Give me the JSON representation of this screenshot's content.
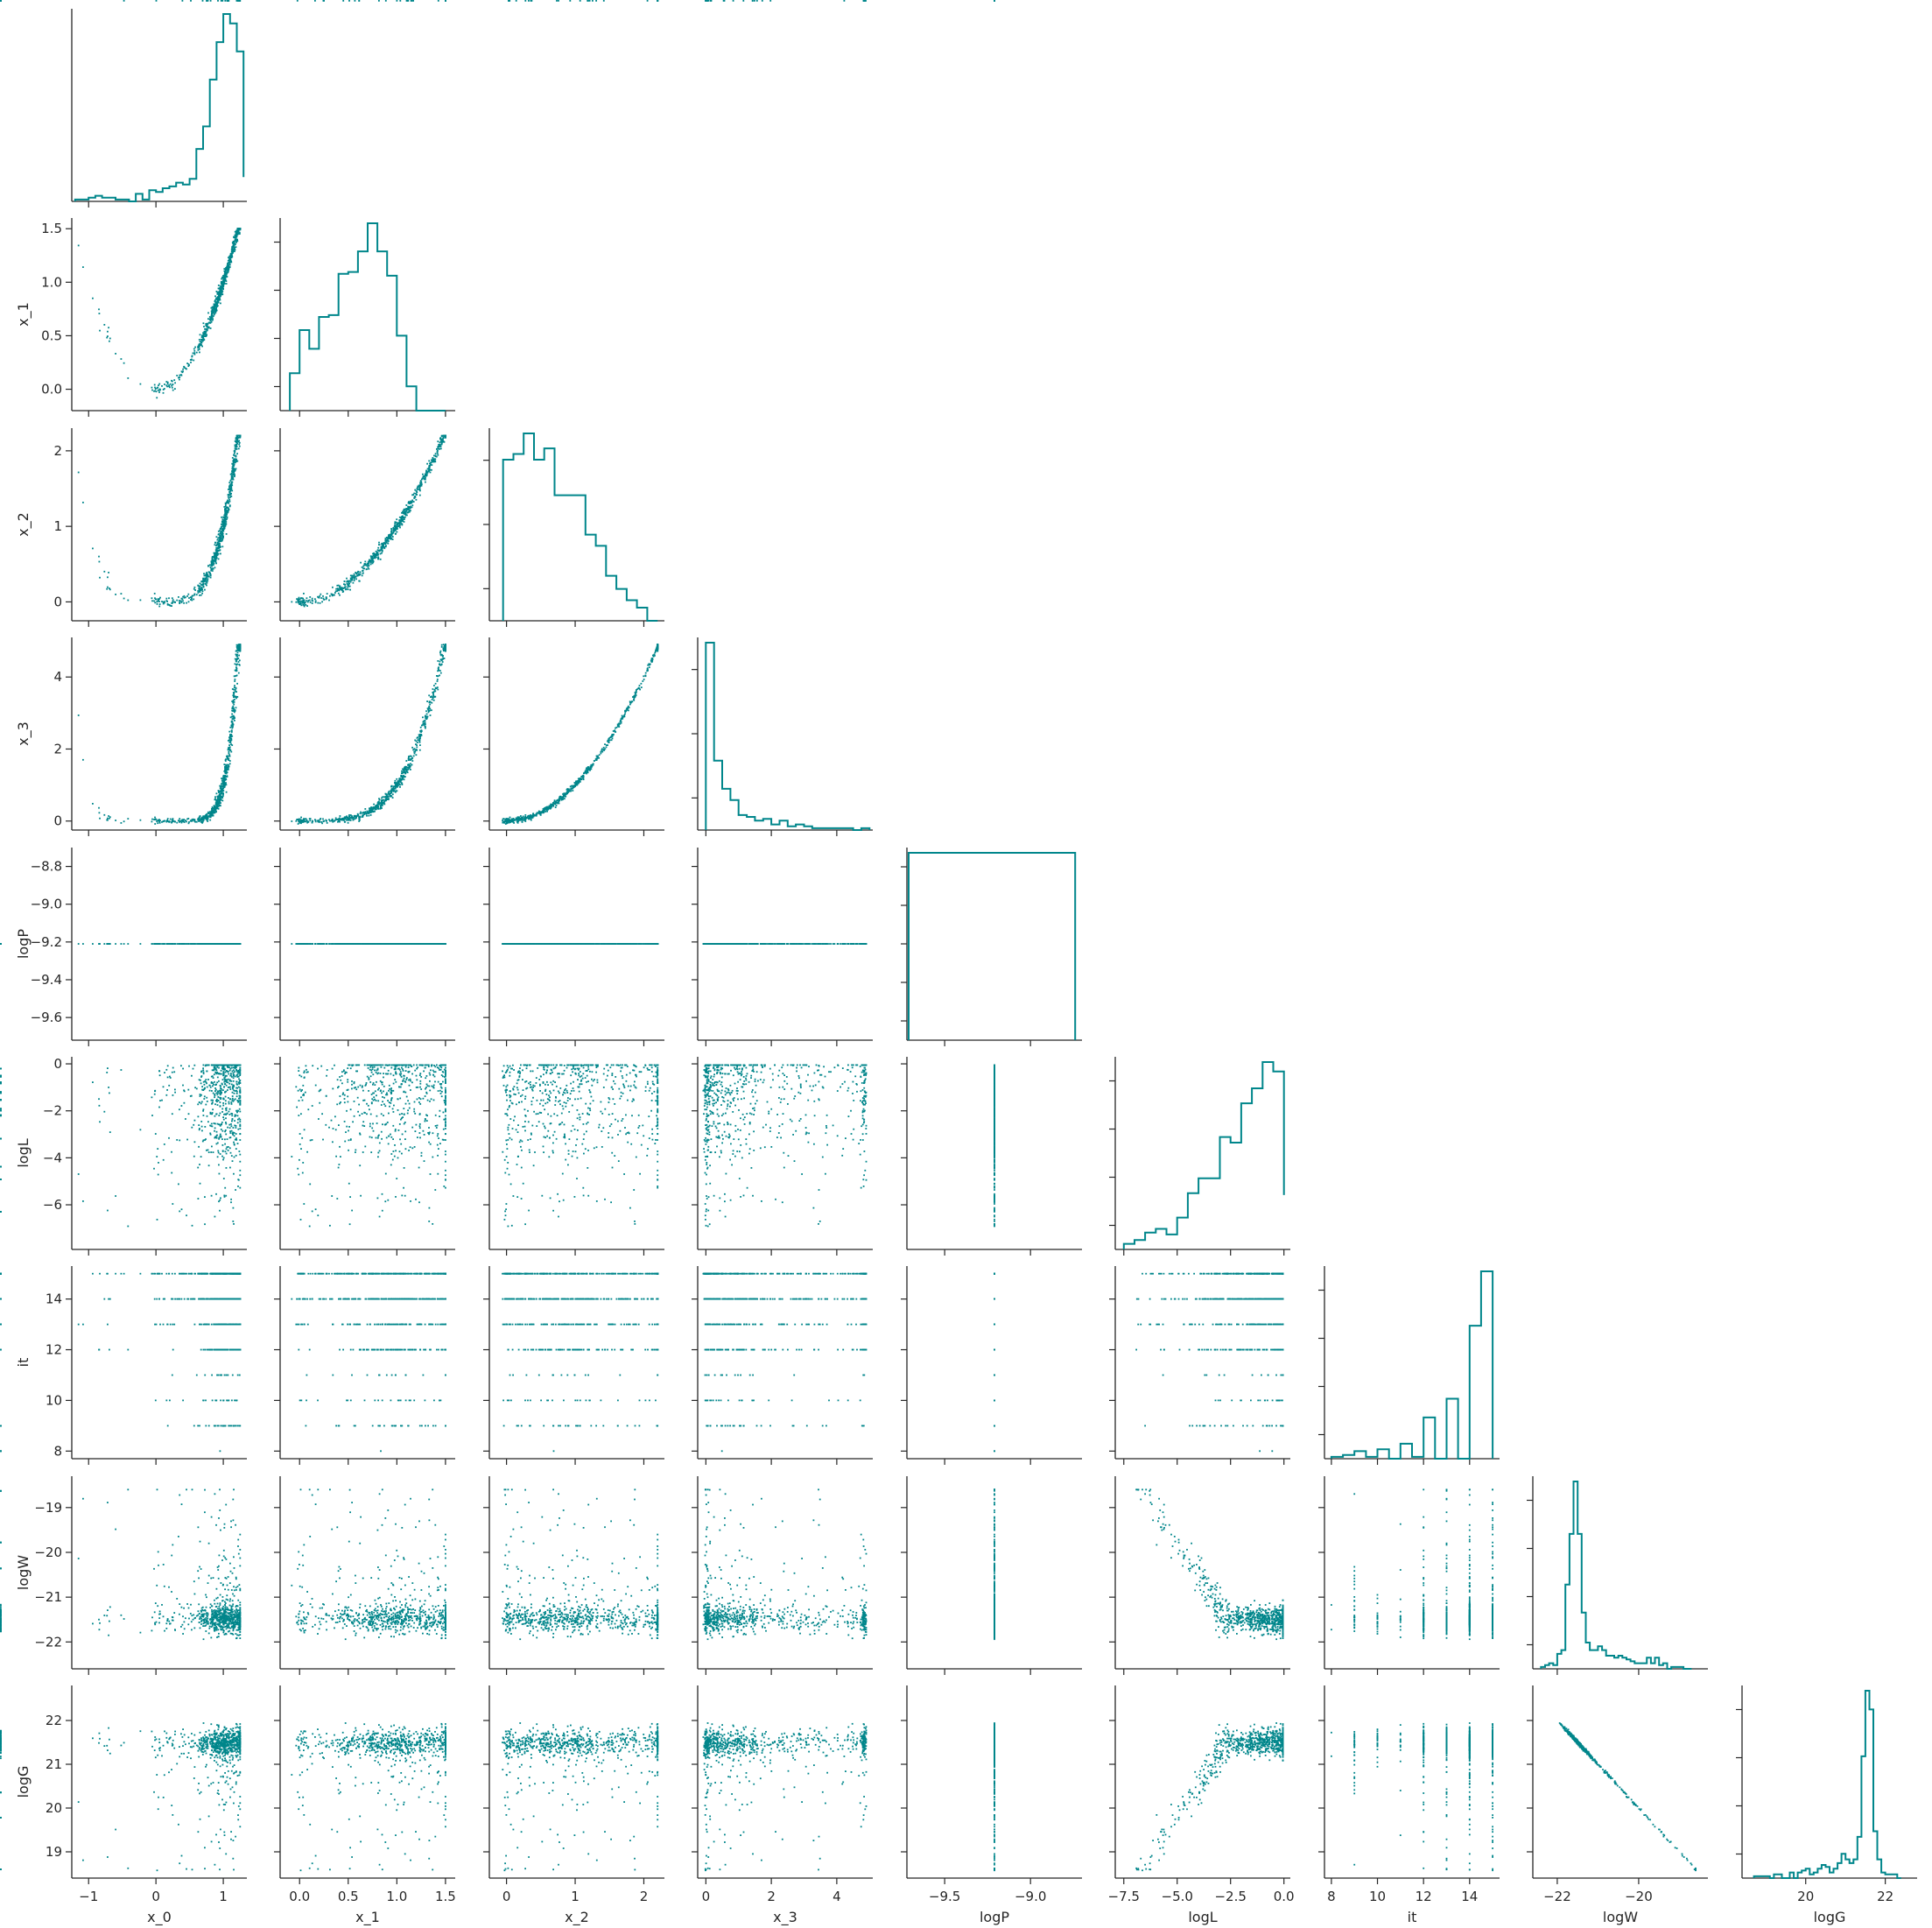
{
  "chart_data": {
    "type": "scatter",
    "kind": "corner-pairplot",
    "layout": "lower-triangle",
    "color": "#00868b",
    "diagonal": "step-histogram",
    "grid": false,
    "variables": [
      {
        "name": "x_0",
        "range": [
          -1.25,
          1.35
        ],
        "ticks": [
          -1,
          0,
          1
        ],
        "tick_labels": [
          "−1",
          "0",
          "1"
        ]
      },
      {
        "name": "x_1",
        "range": [
          -0.2,
          1.6
        ],
        "ticks": [
          0.0,
          0.5,
          1.0,
          1.5
        ],
        "tick_labels": [
          "0.0",
          "0.5",
          "1.0",
          "1.5"
        ]
      },
      {
        "name": "x_2",
        "range": [
          -0.25,
          2.3
        ],
        "ticks": [
          0,
          1,
          2
        ],
        "tick_labels": [
          "0",
          "1",
          "2"
        ]
      },
      {
        "name": "x_3",
        "range": [
          -0.25,
          5.1
        ],
        "ticks": [
          0,
          2,
          4
        ],
        "tick_labels": [
          "0",
          "2",
          "4"
        ]
      },
      {
        "name": "logP",
        "range": [
          -9.72,
          -8.7
        ],
        "ticks": [
          -9.5,
          -9.0
        ],
        "tick_labels": [
          "−9.5",
          "−9.0"
        ],
        "y_ticks": [
          -8.8,
          -9.0,
          -9.2,
          -9.4,
          -9.6
        ],
        "y_tick_labels": [
          "−8.8",
          "−9.0",
          "−9.2",
          "−9.4",
          "−9.6"
        ]
      },
      {
        "name": "logL",
        "range": [
          -7.9,
          0.3
        ],
        "ticks": [
          -7.5,
          -5.0,
          -2.5,
          0.0
        ],
        "tick_labels": [
          "−7.5",
          "−5.0",
          "−2.5",
          "0.0"
        ],
        "y_ticks": [
          0,
          -2,
          -4,
          -6
        ],
        "y_tick_labels": [
          "0",
          "−2",
          "−4",
          "−6"
        ]
      },
      {
        "name": "it",
        "range": [
          7.7,
          15.3
        ],
        "ticks": [
          8,
          10,
          12,
          14
        ],
        "tick_labels": [
          "8",
          "10",
          "12",
          "14"
        ],
        "y_ticks": [
          8,
          10,
          12,
          14
        ],
        "y_tick_labels": [
          "8",
          "10",
          "12",
          "14"
        ]
      },
      {
        "name": "logW",
        "range": [
          -22.6,
          -18.3
        ],
        "ticks": [
          -22,
          -20
        ],
        "tick_labels": [
          "−22",
          "−20"
        ],
        "y_ticks": [
          -19,
          -20,
          -21,
          -22
        ],
        "y_tick_labels": [
          "−19",
          "−20",
          "−21",
          "−22"
        ]
      },
      {
        "name": "logG",
        "range": [
          18.4,
          22.8
        ],
        "ticks": [
          20,
          22
        ],
        "tick_labels": [
          "20",
          "22"
        ],
        "y_ticks": [
          19,
          20,
          21,
          22
        ],
        "y_tick_labels": [
          "19",
          "20",
          "21",
          "22"
        ]
      }
    ],
    "histograms": [
      {
        "variable": "x_0",
        "edges": [
          -1.2,
          -1.1,
          -1.0,
          -0.9,
          -0.8,
          -0.7,
          -0.6,
          -0.5,
          -0.4,
          -0.3,
          -0.2,
          -0.1,
          0.0,
          0.1,
          0.2,
          0.3,
          0.4,
          0.5,
          0.6,
          0.7,
          0.8,
          0.9,
          1.0,
          1.1,
          1.2,
          1.3
        ],
        "counts": [
          1,
          1,
          2,
          3,
          2,
          2,
          1,
          1,
          0,
          4,
          1,
          6,
          5,
          7,
          8,
          10,
          9,
          12,
          28,
          40,
          65,
          85,
          100,
          95,
          80,
          13
        ]
      },
      {
        "variable": "x_1",
        "edges": [
          -0.1,
          0.0,
          0.1,
          0.2,
          0.3,
          0.4,
          0.5,
          0.6,
          0.7,
          0.8,
          0.9,
          1.0,
          1.1,
          1.2,
          1.3,
          1.4,
          1.5
        ],
        "counts": [
          20,
          43,
          33,
          50,
          51,
          73,
          74,
          85,
          100,
          85,
          72,
          40,
          13,
          0,
          0,
          0
        ]
      },
      {
        "variable": "x_2",
        "edges": [
          -0.05,
          0.1,
          0.25,
          0.4,
          0.55,
          0.7,
          0.85,
          1.0,
          1.15,
          1.3,
          1.45,
          1.6,
          1.75,
          1.9,
          2.05,
          2.2
        ],
        "counts": [
          86,
          89,
          100,
          86,
          92,
          67,
          67,
          67,
          46,
          40,
          24,
          17,
          11,
          7,
          0
        ]
      },
      {
        "variable": "x_3",
        "edges": [
          0.0,
          0.25,
          0.5,
          0.75,
          1.0,
          1.25,
          1.5,
          1.75,
          2.0,
          2.25,
          2.5,
          2.75,
          3.0,
          3.25,
          3.5,
          3.75,
          4.0,
          4.25,
          4.5,
          4.75,
          5.0
        ],
        "counts": [
          100,
          37,
          22,
          16,
          8,
          7,
          5,
          6,
          3,
          5,
          2,
          3,
          2,
          1,
          1,
          1,
          1,
          1,
          0,
          1
        ]
      },
      {
        "variable": "logP",
        "edges": [
          -9.71,
          -8.74
        ],
        "counts": [
          1
        ]
      },
      {
        "variable": "logL",
        "edges": [
          -7.5,
          -7.0,
          -6.5,
          -6.0,
          -5.5,
          -5.0,
          -4.5,
          -4.0,
          -3.5,
          -3.0,
          -2.5,
          -2.0,
          -1.5,
          -1.0,
          -0.5,
          0.0
        ],
        "counts": [
          3,
          5,
          9,
          11,
          8,
          17,
          30,
          38,
          38,
          60,
          57,
          78,
          86,
          100,
          95,
          29
        ]
      },
      {
        "variable": "it",
        "edges": [
          8,
          8.5,
          9,
          9.5,
          10,
          10.5,
          11,
          11.5,
          12,
          12.5,
          13,
          13.5,
          14,
          14.5,
          15
        ],
        "counts": [
          1,
          2,
          4,
          1,
          5,
          0,
          8,
          1,
          22,
          0,
          32,
          0,
          71,
          100
        ]
      },
      {
        "variable": "logW",
        "edges": [
          -22.4,
          -22.3,
          -22.2,
          -22.1,
          -22.0,
          -21.9,
          -21.8,
          -21.7,
          -21.6,
          -21.5,
          -21.4,
          -21.3,
          -21.2,
          -21.1,
          -21.0,
          -20.9,
          -20.8,
          -20.7,
          -20.6,
          -20.5,
          -20.4,
          -20.3,
          -20.2,
          -20.1,
          -20.0,
          -19.9,
          -19.8,
          -19.7,
          -19.6,
          -19.5,
          -19.4,
          -19.3,
          -19.2,
          -19.1,
          -19.0,
          -18.9,
          -18.8,
          -18.7
        ],
        "counts": [
          1,
          2,
          3,
          2,
          8,
          10,
          45,
          72,
          100,
          72,
          30,
          14,
          10,
          10,
          12,
          10,
          7,
          7,
          6,
          7,
          6,
          5,
          4,
          3,
          3,
          3,
          6,
          3,
          6,
          2,
          3,
          0,
          1,
          1,
          1,
          0,
          0
        ]
      },
      {
        "variable": "logG",
        "edges": [
          18.7,
          18.8,
          18.9,
          19.0,
          19.1,
          19.2,
          19.3,
          19.4,
          19.5,
          19.6,
          19.7,
          19.8,
          19.9,
          20.0,
          20.1,
          20.2,
          20.3,
          20.4,
          20.5,
          20.6,
          20.7,
          20.8,
          20.9,
          21.0,
          21.1,
          21.2,
          21.3,
          21.4,
          21.5,
          21.6,
          21.7,
          21.8,
          21.9,
          22.0,
          22.1,
          22.2,
          22.3,
          22.4
        ],
        "counts": [
          1,
          1,
          1,
          1,
          0,
          2,
          2,
          0,
          0,
          3,
          0,
          3,
          4,
          5,
          2,
          3,
          5,
          7,
          6,
          3,
          5,
          8,
          13,
          10,
          8,
          10,
          22,
          65,
          100,
          90,
          25,
          10,
          3,
          2,
          2,
          2,
          0
        ]
      }
    ],
    "scatter_points": 800
  }
}
